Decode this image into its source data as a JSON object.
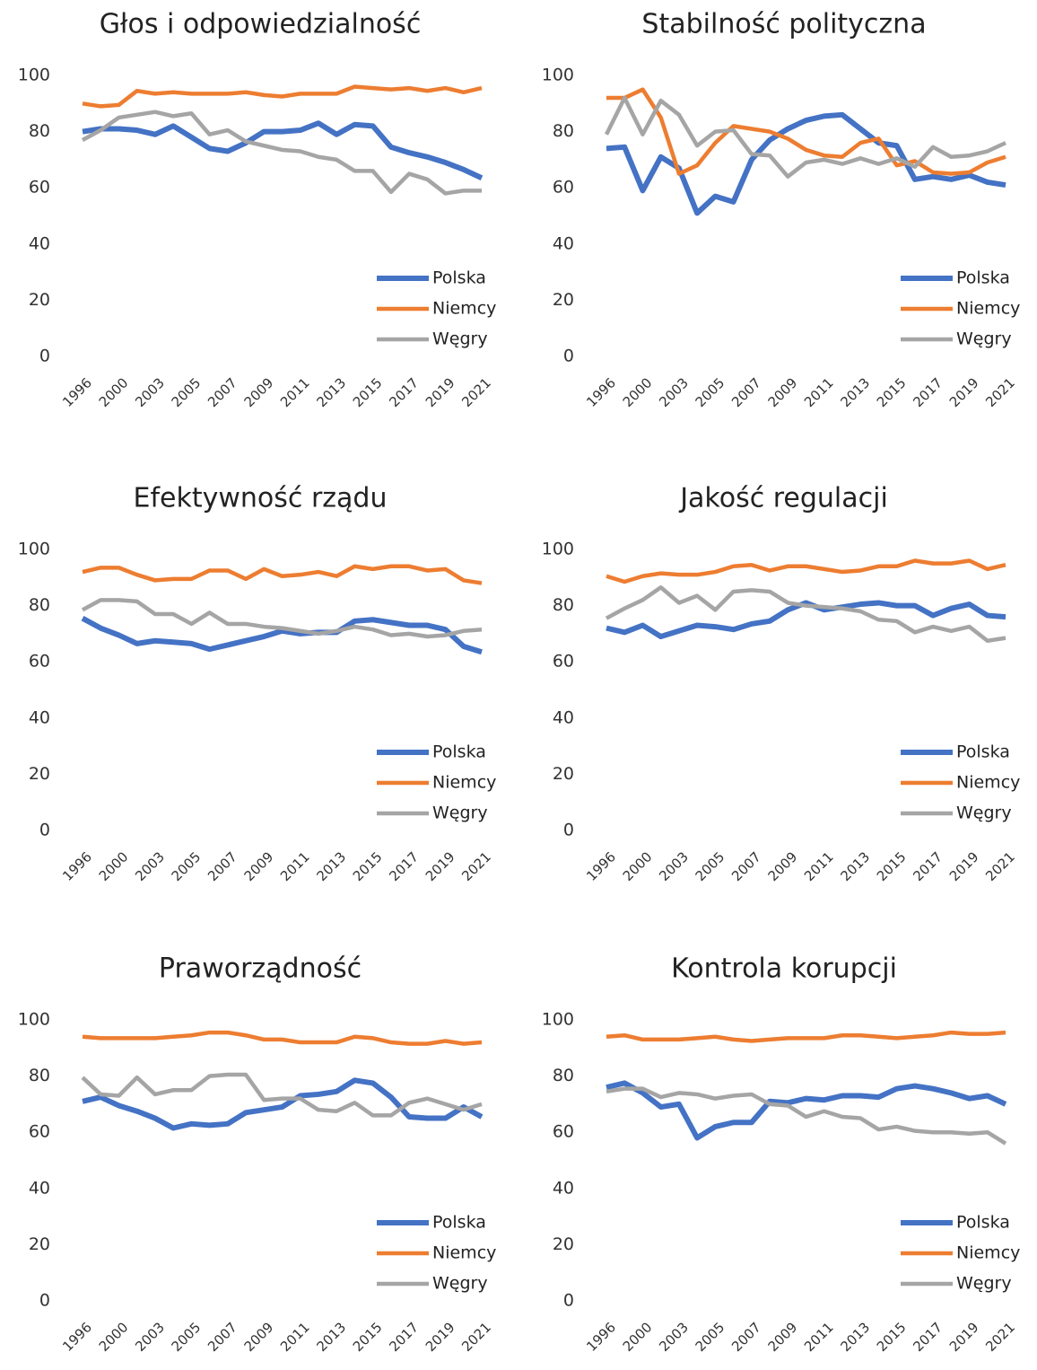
{
  "chart_data": [
    {
      "type": "line",
      "title": "Głos i odpowiedzialność",
      "categories": [
        "1996",
        null,
        "2000",
        null,
        "2003",
        null,
        "2005",
        null,
        "2007",
        null,
        "2009",
        null,
        "2011",
        null,
        "2013",
        null,
        "2015",
        null,
        "2017",
        null,
        "2019",
        null,
        "2021"
      ],
      "series": [
        {
          "name": "Polska",
          "color": "#4472c4",
          "values": [
            80,
            81,
            81,
            80.5,
            79,
            82,
            78,
            74,
            73,
            76,
            80,
            80,
            80.5,
            83,
            79,
            82.5,
            82,
            74.5,
            72.5,
            71,
            69,
            66.5,
            63.5
          ]
        },
        {
          "name": "Niemcy",
          "color": "#ed7d31",
          "values": [
            90,
            89,
            89.5,
            94.5,
            93.5,
            94,
            93.5,
            93.5,
            93.5,
            94,
            93,
            92.5,
            93.5,
            93.5,
            93.5,
            96,
            95.5,
            95,
            95.5,
            94.5,
            95.5,
            94,
            95.5
          ]
        },
        {
          "name": "Węgry",
          "color": "#a5a5a5",
          "values": [
            77,
            80.5,
            85,
            86,
            87,
            85.5,
            86.5,
            79,
            80.5,
            76.5,
            75,
            73.5,
            73,
            71,
            70,
            66,
            66,
            58.5,
            65,
            63,
            58,
            59,
            59
          ]
        }
      ],
      "ylim": [
        0,
        100
      ],
      "yticks": [
        0,
        20,
        40,
        60,
        80,
        100
      ],
      "grid": false,
      "legend": "lower right"
    },
    {
      "type": "line",
      "title": "Stabilność polityczna",
      "categories": [
        "1996",
        null,
        "2000",
        null,
        "2003",
        null,
        "2005",
        null,
        "2007",
        null,
        "2009",
        null,
        "2011",
        null,
        "2013",
        null,
        "2015",
        null,
        "2017",
        null,
        "2019",
        null,
        "2021"
      ],
      "series": [
        {
          "name": "Polska",
          "color": "#4472c4",
          "values": [
            74,
            74.5,
            59,
            71,
            67,
            51,
            57,
            55,
            70,
            77,
            81,
            84,
            85.5,
            86,
            81,
            76,
            75,
            63,
            64,
            63,
            64.5,
            62,
            61
          ]
        },
        {
          "name": "Niemcy",
          "color": "#ed7d31",
          "values": [
            92,
            92,
            95,
            85,
            65,
            68,
            76,
            82,
            81,
            80,
            77.5,
            73.5,
            71.5,
            71,
            76,
            77.5,
            68,
            69.5,
            65.5,
            65,
            65.5,
            69,
            71
          ]
        },
        {
          "name": "Węgry",
          "color": "#a5a5a5",
          "values": [
            79,
            92,
            79,
            91,
            86,
            75,
            80,
            80.5,
            72,
            71.5,
            64,
            69,
            70,
            68.5,
            70.5,
            68.5,
            70.5,
            67.5,
            74.5,
            71,
            71.5,
            73,
            76
          ]
        }
      ],
      "ylim": [
        0,
        100
      ],
      "yticks": [
        0,
        20,
        40,
        60,
        80,
        100
      ],
      "grid": false,
      "legend": "lower right"
    },
    {
      "type": "line",
      "title": "Efektywność rządu",
      "categories": [
        "1996",
        null,
        "2000",
        null,
        "2003",
        null,
        "2005",
        null,
        "2007",
        null,
        "2009",
        null,
        "2011",
        null,
        "2013",
        null,
        "2015",
        null,
        "2017",
        null,
        "2019",
        null,
        "2021"
      ],
      "series": [
        {
          "name": "Polska",
          "color": "#4472c4",
          "values": [
            75.5,
            72,
            69.5,
            66.5,
            67.5,
            67,
            66.5,
            64.5,
            66,
            67.5,
            69,
            71,
            70,
            70.5,
            70.5,
            74.5,
            75,
            74,
            73,
            73,
            71.5,
            65.5,
            63.5
          ]
        },
        {
          "name": "Niemcy",
          "color": "#ed7d31",
          "values": [
            92,
            93.5,
            93.5,
            91,
            89,
            89.5,
            89.5,
            92.5,
            92.5,
            89.5,
            93,
            90.5,
            91,
            92,
            90.5,
            94,
            93,
            94,
            94,
            92.5,
            93,
            89,
            88
          ]
        },
        {
          "name": "Węgry",
          "color": "#a5a5a5",
          "values": [
            78.5,
            82,
            82,
            81.5,
            77,
            77,
            73.5,
            77.5,
            73.5,
            73.5,
            72.5,
            72,
            71,
            70,
            71,
            72.5,
            71.5,
            69.5,
            70,
            69,
            69.5,
            71,
            71.5
          ]
        }
      ],
      "ylim": [
        0,
        100
      ],
      "yticks": [
        0,
        20,
        40,
        60,
        80,
        100
      ],
      "grid": false,
      "legend": "lower right"
    },
    {
      "type": "line",
      "title": "Jakość regulacji",
      "categories": [
        "1996",
        null,
        "2000",
        null,
        "2003",
        null,
        "2005",
        null,
        "2007",
        null,
        "2009",
        null,
        "2011",
        null,
        "2013",
        null,
        "2015",
        null,
        "2017",
        null,
        "2019",
        null,
        "2021"
      ],
      "series": [
        {
          "name": "Polska",
          "color": "#4472c4",
          "values": [
            72,
            70.5,
            73,
            69,
            71,
            73,
            72.5,
            71.5,
            73.5,
            74.5,
            78.5,
            81,
            78.5,
            79.5,
            80.5,
            81,
            80,
            80,
            76.5,
            79,
            80.5,
            76.5,
            76
          ]
        },
        {
          "name": "Niemcy",
          "color": "#ed7d31",
          "values": [
            90.5,
            88.5,
            90.5,
            91.5,
            91,
            91,
            92,
            94,
            94.5,
            92.5,
            94,
            94,
            93,
            92,
            92.5,
            94,
            94,
            96,
            95,
            95,
            96,
            93,
            94.5
          ]
        },
        {
          "name": "Węgry",
          "color": "#a5a5a5",
          "values": [
            75.5,
            79,
            82,
            86.5,
            81,
            83.5,
            78.5,
            85,
            85.5,
            85,
            81,
            80,
            79.5,
            79,
            78,
            75,
            74.5,
            70.5,
            72.5,
            71,
            72.5,
            67.5,
            68.5
          ]
        }
      ],
      "ylim": [
        0,
        100
      ],
      "yticks": [
        0,
        20,
        40,
        60,
        80,
        100
      ],
      "grid": false,
      "legend": "lower right"
    },
    {
      "type": "line",
      "title": "Praworządność",
      "categories": [
        "1996",
        null,
        "2000",
        null,
        "2003",
        null,
        "2005",
        null,
        "2007",
        null,
        "2009",
        null,
        "2011",
        null,
        "2013",
        null,
        "2015",
        null,
        "2017",
        null,
        "2019",
        null,
        "2021"
      ],
      "series": [
        {
          "name": "Polska",
          "color": "#4472c4",
          "values": [
            71,
            72.5,
            69.5,
            67.5,
            65,
            61.5,
            63,
            62.5,
            63,
            67,
            68,
            69,
            73,
            73.5,
            74.5,
            78.5,
            77.5,
            72.5,
            65.5,
            65,
            65,
            69,
            65.5
          ]
        },
        {
          "name": "Niemcy",
          "color": "#ed7d31",
          "values": [
            94,
            93.5,
            93.5,
            93.5,
            93.5,
            94,
            94.5,
            95.5,
            95.5,
            94.5,
            93,
            93,
            92,
            92,
            92,
            94,
            93.5,
            92,
            91.5,
            91.5,
            92.5,
            91.5,
            92
          ]
        },
        {
          "name": "Węgry",
          "color": "#a5a5a5",
          "values": [
            79.5,
            73.5,
            73,
            79.5,
            73.5,
            75,
            75,
            80,
            80.5,
            80.5,
            71.5,
            72,
            72,
            68,
            67.5,
            70.5,
            66,
            66,
            70.5,
            72,
            70,
            68,
            70
          ]
        }
      ],
      "ylim": [
        0,
        100
      ],
      "yticks": [
        0,
        20,
        40,
        60,
        80,
        100
      ],
      "grid": false,
      "legend": "lower right"
    },
    {
      "type": "line",
      "title": "Kontrola korupcji",
      "categories": [
        "1996",
        null,
        "2000",
        null,
        "2003",
        null,
        "2005",
        null,
        "2007",
        null,
        "2009",
        null,
        "2011",
        null,
        "2013",
        null,
        "2015",
        null,
        "2017",
        null,
        "2019",
        null,
        "2021"
      ],
      "series": [
        {
          "name": "Polska",
          "color": "#4472c4",
          "values": [
            76,
            77.5,
            74,
            69,
            70,
            58,
            62,
            63.5,
            63.5,
            71,
            70.5,
            72,
            71.5,
            73,
            73,
            72.5,
            75.5,
            76.5,
            75.5,
            74,
            72,
            73,
            70
          ]
        },
        {
          "name": "Niemcy",
          "color": "#ed7d31",
          "values": [
            94,
            94.5,
            93,
            93,
            93,
            93.5,
            94,
            93,
            92.5,
            93,
            93.5,
            93.5,
            93.5,
            94.5,
            94.5,
            94,
            93.5,
            94,
            94.5,
            95.5,
            95,
            95,
            95.5
          ]
        },
        {
          "name": "Węgry",
          "color": "#a5a5a5",
          "values": [
            74.5,
            75.5,
            75.5,
            72.5,
            74,
            73.5,
            72,
            73,
            73.5,
            70,
            69.5,
            65.5,
            67.5,
            65.5,
            65,
            61,
            62,
            60.5,
            60,
            60,
            59.5,
            60,
            56
          ]
        }
      ],
      "ylim": [
        0,
        100
      ],
      "yticks": [
        0,
        20,
        40,
        60,
        80,
        100
      ],
      "grid": false,
      "legend": "lower right"
    }
  ]
}
